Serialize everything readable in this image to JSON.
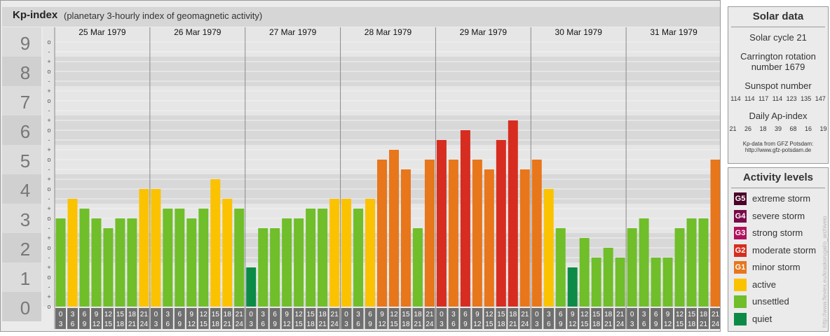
{
  "header": {
    "title": "Kp-index",
    "subtitle": "(planetary 3-hourly index of geomagnetic activity)"
  },
  "solar": {
    "heading": "Solar data",
    "cycle": "Solar cycle 21",
    "carrington_1": "Carrington rotation",
    "carrington_2": "number 1679",
    "sunspot_label": "Sunspot number",
    "sunspot_values": "114 114 117 114 123 135 147",
    "ap_label": "Daily Ap-index",
    "ap_values": "21 26 18 39 68 16 19",
    "source_1": "Kp-data from GFZ Potsdam:",
    "source_2": "http://www.gfz-potsdam.de"
  },
  "activity": {
    "heading": "Activity levels",
    "levels": [
      {
        "code": "G5",
        "label": "extreme storm",
        "color": "#4a0028"
      },
      {
        "code": "G4",
        "label": "severe storm",
        "color": "#7a0a4a"
      },
      {
        "code": "G3",
        "label": "strong storm",
        "color": "#b0105e"
      },
      {
        "code": "G2",
        "label": "moderate storm",
        "color": "#d62d20"
      },
      {
        "code": "G1",
        "label": "minor storm",
        "color": "#e8761b"
      },
      {
        "code": "",
        "label": "active",
        "color": "#fbc200"
      },
      {
        "code": "",
        "label": "unsettled",
        "color": "#6fbe2a"
      },
      {
        "code": "",
        "label": "quiet",
        "color": "#0c8b47"
      }
    ]
  },
  "credit": "http://www.fleviex.eu/kraskorugal/o_archiveio",
  "chart_data": {
    "type": "bar",
    "ylim": [
      0,
      9
    ],
    "yticks": [
      "0",
      "1",
      "2",
      "3",
      "4",
      "5",
      "6",
      "7",
      "8",
      "9"
    ],
    "sublabels": [
      "+",
      "o",
      "-"
    ],
    "days": [
      "25 Mar 1979",
      "26 Mar 1979",
      "27 Mar 1979",
      "28 Mar 1979",
      "29 Mar 1979",
      "30 Mar 1979",
      "31 Mar 1979"
    ],
    "interval_top": [
      "0",
      "3",
      "6",
      "9",
      "12",
      "15",
      "18",
      "21"
    ],
    "interval_bottom": [
      "3",
      "6",
      "9",
      "12",
      "15",
      "18",
      "21",
      "24"
    ],
    "values": [
      [
        3.0,
        3.667,
        3.333,
        3.0,
        2.667,
        3.0,
        3.0,
        4.0
      ],
      [
        4.0,
        3.333,
        3.333,
        3.0,
        3.333,
        4.333,
        3.667,
        3.333
      ],
      [
        1.333,
        2.667,
        2.667,
        3.0,
        3.0,
        3.333,
        3.333,
        3.667
      ],
      [
        3.667,
        3.333,
        3.667,
        5.0,
        5.333,
        4.667,
        2.667,
        5.0
      ],
      [
        5.667,
        5.0,
        6.0,
        5.0,
        4.667,
        5.667,
        6.333,
        4.667
      ],
      [
        5.0,
        4.0,
        2.667,
        1.333,
        2.333,
        1.667,
        2.0,
        1.667
      ],
      [
        2.667,
        3.0,
        1.667,
        1.667,
        2.667,
        3.0,
        3.0,
        5.0
      ]
    ],
    "colors": {
      "quiet": "#0c8b47",
      "unsettled": "#6fbe2a",
      "active": "#fbc200",
      "g1": "#e8761b",
      "g2": "#d62d20",
      "g3": "#b0105e"
    }
  }
}
